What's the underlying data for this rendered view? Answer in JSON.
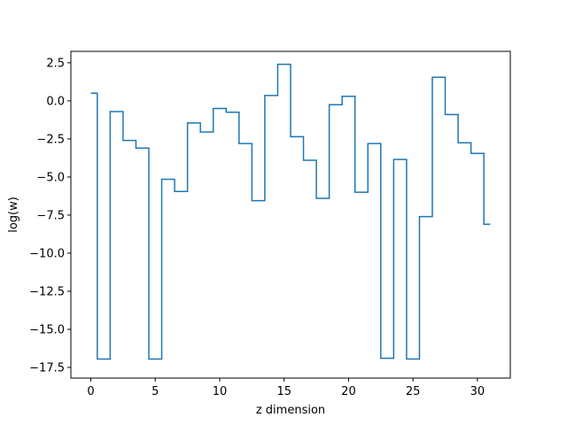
{
  "chart_data": {
    "type": "line",
    "drawstyle": "steps-mid",
    "title": "",
    "xlabel": "z dimension",
    "ylabel": "log(w)",
    "xlim": [
      -1.55,
      32.55
    ],
    "ylim": [
      -18.2,
      3.25
    ],
    "xticks": [
      0,
      5,
      10,
      15,
      20,
      25,
      30
    ],
    "xtick_labels": [
      "0",
      "5",
      "10",
      "15",
      "20",
      "25",
      "30"
    ],
    "yticks": [
      2.5,
      0.0,
      -2.5,
      -5.0,
      -7.5,
      -10.0,
      -12.5,
      -15.0,
      -17.5
    ],
    "ytick_labels": [
      "2.5",
      "0.0",
      "−2.5",
      "−5.0",
      "−7.5",
      "−10.0",
      "−12.5",
      "−15.0",
      "−17.5"
    ],
    "grid": false,
    "legend": false,
    "line_color": "#1f77b4",
    "series": [
      {
        "x": [
          0,
          1,
          2,
          3,
          4,
          5,
          6,
          7,
          8,
          9,
          10,
          11,
          12,
          13,
          14,
          15,
          16,
          17,
          18,
          19,
          20,
          21,
          22,
          23,
          24,
          25,
          26,
          27,
          28,
          29,
          30,
          31
        ],
        "values": [
          0.5,
          -16.95,
          -0.7,
          -2.6,
          -3.1,
          -16.95,
          -5.15,
          -5.95,
          -1.45,
          -2.05,
          -0.5,
          -0.75,
          -2.8,
          -6.55,
          0.35,
          2.4,
          -2.35,
          -3.9,
          -6.4,
          -0.25,
          0.3,
          -6.0,
          -2.8,
          -16.9,
          -3.85,
          -16.95,
          -7.6,
          1.55,
          -0.9,
          -2.75,
          -3.45,
          -8.1
        ]
      }
    ]
  }
}
